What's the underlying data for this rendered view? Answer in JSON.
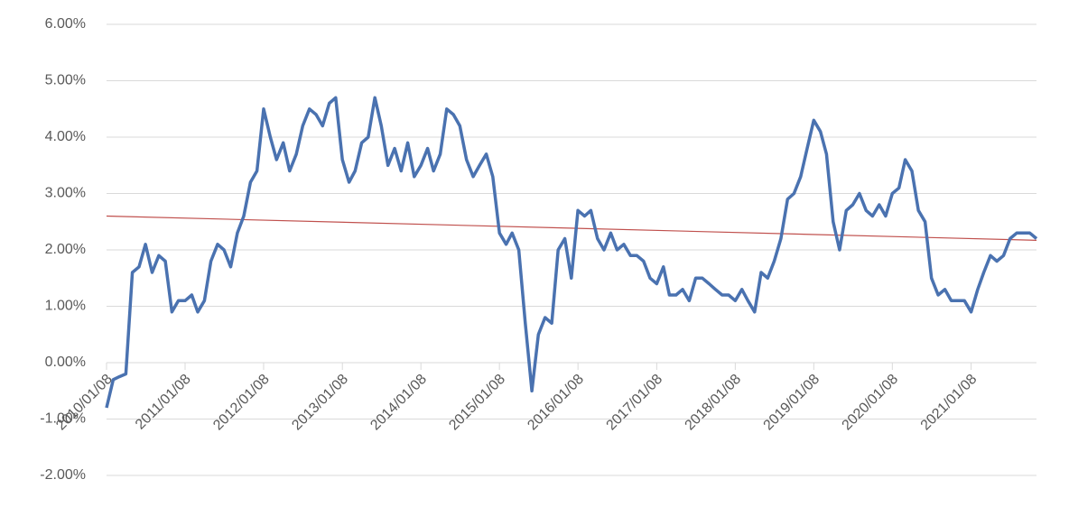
{
  "chart_data": {
    "type": "line",
    "xlim": [
      "2010/01/08",
      "2021/11/08"
    ],
    "xticks": [
      "2010/01/08",
      "2011/01/08",
      "2012/01/08",
      "2013/01/08",
      "2014/01/08",
      "2015/01/08",
      "2016/01/08",
      "2017/01/08",
      "2018/01/08",
      "2019/01/08",
      "2020/01/08",
      "2021/01/08"
    ],
    "ylim": [
      -2,
      6
    ],
    "yticks": [
      {
        "value": -2,
        "label": "-2.00%"
      },
      {
        "value": -1,
        "label": "-1.00%"
      },
      {
        "value": 0,
        "label": "0.00%"
      },
      {
        "value": 1,
        "label": "1.00%"
      },
      {
        "value": 2,
        "label": "2.00%"
      },
      {
        "value": 3,
        "label": "3.00%"
      },
      {
        "value": 4,
        "label": "4.00%"
      },
      {
        "value": 5,
        "label": "5.00%"
      },
      {
        "value": 6,
        "label": "6.00%"
      }
    ],
    "grid": true,
    "x": [
      "2010/01/08",
      "2010/02/08",
      "2010/03/08",
      "2010/04/08",
      "2010/05/08",
      "2010/06/08",
      "2010/07/08",
      "2010/08/08",
      "2010/09/08",
      "2010/10/08",
      "2010/11/08",
      "2010/12/08",
      "2011/01/08",
      "2011/02/08",
      "2011/03/08",
      "2011/04/08",
      "2011/05/08",
      "2011/06/08",
      "2011/07/08",
      "2011/08/08",
      "2011/09/08",
      "2011/10/08",
      "2011/11/08",
      "2011/12/08",
      "2012/01/08",
      "2012/02/08",
      "2012/03/08",
      "2012/04/08",
      "2012/05/08",
      "2012/06/08",
      "2012/07/08",
      "2012/08/08",
      "2012/09/08",
      "2012/10/08",
      "2012/11/08",
      "2012/12/08",
      "2013/01/08",
      "2013/02/08",
      "2013/03/08",
      "2013/04/08",
      "2013/05/08",
      "2013/06/08",
      "2013/07/08",
      "2013/08/08",
      "2013/09/08",
      "2013/10/08",
      "2013/11/08",
      "2013/12/08",
      "2014/01/08",
      "2014/02/08",
      "2014/03/08",
      "2014/04/08",
      "2014/05/08",
      "2014/06/08",
      "2014/07/08",
      "2014/08/08",
      "2014/09/08",
      "2014/10/08",
      "2014/11/08",
      "2014/12/08",
      "2015/01/08",
      "2015/02/08",
      "2015/03/08",
      "2015/04/08",
      "2015/05/08",
      "2015/06/08",
      "2015/07/08",
      "2015/08/08",
      "2015/09/08",
      "2015/10/08",
      "2015/11/08",
      "2015/12/08",
      "2016/01/08",
      "2016/02/08",
      "2016/03/08",
      "2016/04/08",
      "2016/05/08",
      "2016/06/08",
      "2016/07/08",
      "2016/08/08",
      "2016/09/08",
      "2016/10/08",
      "2016/11/08",
      "2016/12/08",
      "2017/01/08",
      "2017/02/08",
      "2017/03/08",
      "2017/04/08",
      "2017/05/08",
      "2017/06/08",
      "2017/07/08",
      "2017/08/08",
      "2017/09/08",
      "2017/10/08",
      "2017/11/08",
      "2017/12/08",
      "2018/01/08",
      "2018/02/08",
      "2018/03/08",
      "2018/04/08",
      "2018/05/08",
      "2018/06/08",
      "2018/07/08",
      "2018/08/08",
      "2018/09/08",
      "2018/10/08",
      "2018/11/08",
      "2018/12/08",
      "2019/01/08",
      "2019/02/08",
      "2019/03/08",
      "2019/04/08",
      "2019/05/08",
      "2019/06/08",
      "2019/07/08",
      "2019/08/08",
      "2019/09/08",
      "2019/10/08",
      "2019/11/08",
      "2019/12/08",
      "2020/01/08",
      "2020/02/08",
      "2020/03/08",
      "2020/04/08",
      "2020/05/08",
      "2020/06/08",
      "2020/07/08",
      "2020/08/08",
      "2020/09/08",
      "2020/10/08",
      "2020/11/08",
      "2020/12/08",
      "2021/01/08",
      "2021/02/08",
      "2021/03/08",
      "2021/04/08",
      "2021/05/08",
      "2021/06/08",
      "2021/07/08",
      "2021/08/08",
      "2021/09/08",
      "2021/10/08",
      "2021/11/08"
    ],
    "series": [
      {
        "color": "#4a72b0",
        "values": [
          -0.8,
          -0.3,
          -0.25,
          -0.2,
          1.6,
          1.7,
          2.1,
          1.6,
          1.9,
          1.8,
          0.9,
          1.1,
          1.1,
          1.2,
          0.9,
          1.1,
          1.8,
          2.1,
          2.0,
          1.7,
          2.3,
          2.6,
          3.2,
          3.4,
          4.5,
          4.0,
          3.6,
          3.9,
          3.4,
          3.7,
          4.2,
          4.5,
          4.4,
          4.2,
          4.6,
          4.7,
          3.6,
          3.2,
          3.4,
          3.9,
          4.0,
          4.7,
          4.2,
          3.5,
          3.8,
          3.4,
          3.9,
          3.3,
          3.5,
          3.8,
          3.4,
          3.7,
          4.5,
          4.4,
          4.2,
          3.6,
          3.3,
          3.5,
          3.7,
          3.3,
          2.3,
          2.1,
          2.3,
          2.0,
          0.7,
          -0.5,
          0.5,
          0.8,
          0.7,
          2.0,
          2.2,
          1.5,
          2.7,
          2.6,
          2.7,
          2.2,
          2.0,
          2.3,
          2.0,
          2.1,
          1.9,
          1.9,
          1.8,
          1.5,
          1.4,
          1.7,
          1.2,
          1.2,
          1.3,
          1.1,
          1.5,
          1.5,
          1.4,
          1.3,
          1.2,
          1.2,
          1.1,
          1.3,
          1.1,
          0.9,
          1.6,
          1.5,
          1.8,
          2.2,
          2.9,
          3.0,
          3.3,
          3.8,
          4.3,
          4.1,
          3.7,
          2.5,
          2.0,
          2.7,
          2.8,
          3.0,
          2.7,
          2.6,
          2.8,
          2.6,
          3.0,
          3.1,
          3.6,
          3.4,
          2.7,
          2.5,
          1.5,
          1.2,
          1.3,
          1.1,
          1.1,
          1.1,
          0.9,
          1.3,
          1.6,
          1.9,
          1.8,
          1.9,
          2.2,
          2.3,
          2.3,
          2.3,
          2.2
        ]
      }
    ],
    "trend": {
      "color": "#c0504d",
      "x": [
        "2010/01/08",
        "2021/11/08"
      ],
      "values": [
        2.6,
        2.17
      ]
    }
  }
}
